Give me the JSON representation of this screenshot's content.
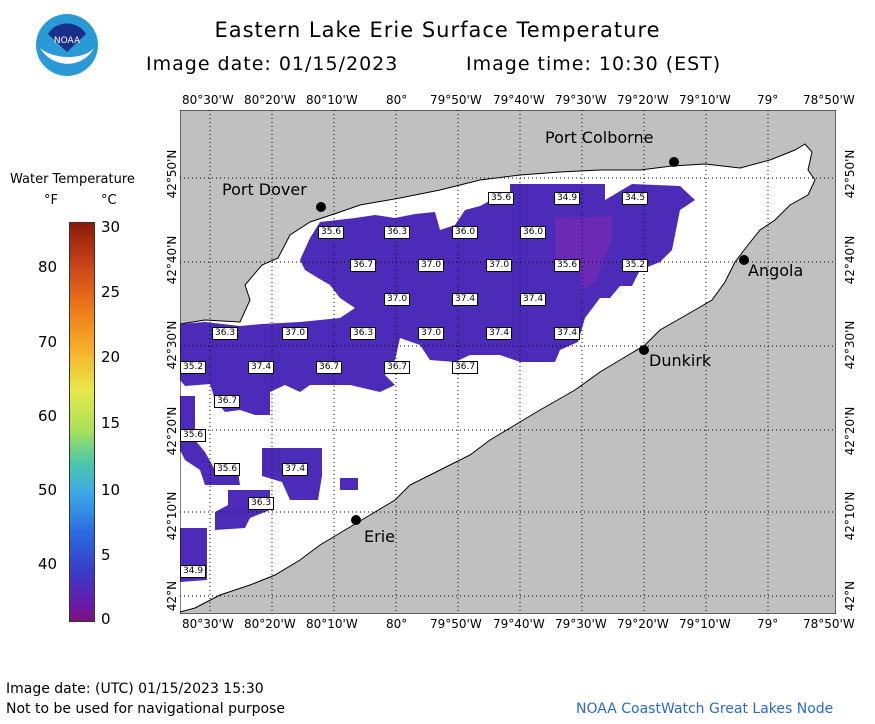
{
  "header": {
    "title": "Eastern Lake Erie Surface Temperature",
    "image_date_label": "Image date: 01/15/2023",
    "image_time_label": "Image time: 10:30 (EST)"
  },
  "logo": {
    "text": "NOAA"
  },
  "legend": {
    "title": "Water Temperature",
    "unit_f": "°F",
    "unit_c": "°C",
    "f_ticks": [
      "80",
      "70",
      "60",
      "50",
      "40"
    ],
    "c_ticks": [
      "30",
      "25",
      "20",
      "15",
      "10",
      "5",
      "0"
    ]
  },
  "map": {
    "lon_labels": [
      "80°30'W",
      "80°20'W",
      "80°10'W",
      "80°",
      "79°50'W",
      "79°40'W",
      "79°30'W",
      "79°20'W",
      "79°10'W",
      "79°",
      "78°50'W"
    ],
    "lat_labels": [
      "42°50'N",
      "42°40'N",
      "42°30'N",
      "42°20'N",
      "42°10'N",
      "42°N"
    ],
    "cities": [
      {
        "name": "Port Colborne"
      },
      {
        "name": "Port Dover"
      },
      {
        "name": "Angola"
      },
      {
        "name": "Dunkirk"
      },
      {
        "name": "Erie"
      }
    ],
    "temp_labels": [
      "35.6",
      "34.9",
      "34.5",
      "35.6",
      "36.3",
      "36.0",
      "36.0",
      "36.7",
      "37.0",
      "37.0",
      "35.6",
      "35.2",
      "37.0",
      "37.4",
      "37.4",
      "36.3",
      "37.0",
      "36.3",
      "37.0",
      "37.4",
      "37.4",
      "35.2",
      "37.4",
      "36.7",
      "36.7",
      "36.7",
      "36.7",
      "35.6",
      "35.6",
      "37.4",
      "36.3",
      "34.9"
    ],
    "colors": {
      "land": "#c0c0c0",
      "water_nodata": "#ffffff",
      "warm_water": "#4b2bb8",
      "cool_water": "#6a2ab4"
    }
  },
  "footer": {
    "utc_date": "Image date: (UTC) 01/15/2023  15:30",
    "disclaimer": "Not to be used for navigational purpose",
    "credit": "NOAA CoastWatch Great Lakes Node"
  }
}
